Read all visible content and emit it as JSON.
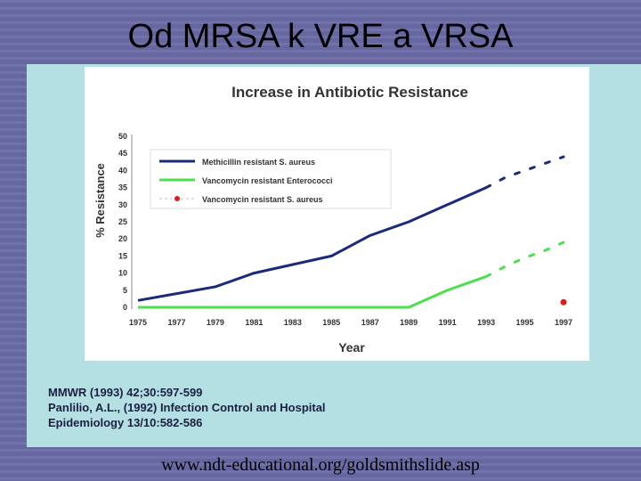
{
  "slide": {
    "title": "Od MRSA k VRE a VRSA",
    "url": "www.ndt-educational.org/goldsmithslide.asp"
  },
  "references": [
    "MMWR (1993) 42;30:597-599",
    "Panlilio, A.L., (1992) Infection Control and Hospital",
    "Epidemiology 13/10:582-586"
  ],
  "colors": {
    "mrsa": "#1c2a7a",
    "vre": "#4ce04c",
    "vrsa": "#d81e1e"
  },
  "chart_data": {
    "type": "line",
    "title": "Increase in Antibiotic Resistance",
    "xlabel": "Year",
    "ylabel": "% Resistance",
    "ylim": [
      0,
      50
    ],
    "yticks": [
      0,
      5,
      10,
      15,
      20,
      25,
      30,
      35,
      40,
      45,
      50
    ],
    "xticks": [
      "1975",
      "1977",
      "1979",
      "1981",
      "1983",
      "1985",
      "1987",
      "1989",
      "1991",
      "1993",
      "1995",
      "1997"
    ],
    "grid": false,
    "legend_position": "top-left",
    "series": [
      {
        "name": "Methicillin resistant S. aureus",
        "solid": {
          "x": [
            1975,
            1977,
            1979,
            1981,
            1983,
            1985,
            1987,
            1989,
            1991,
            1993
          ],
          "y": [
            2,
            4,
            6,
            10,
            12.5,
            15,
            21,
            25,
            30,
            35
          ]
        },
        "projected": {
          "x": [
            1994,
            1995,
            1996,
            1997
          ],
          "y": [
            38,
            40,
            42,
            44
          ]
        }
      },
      {
        "name": "Vancomycin resistant Enterococci",
        "solid": {
          "x": [
            1975,
            1989,
            1991,
            1993
          ],
          "y": [
            0,
            0,
            5,
            9
          ]
        },
        "projected": {
          "x": [
            1994,
            1995,
            1996,
            1997
          ],
          "y": [
            12,
            14.5,
            16.5,
            19
          ]
        }
      },
      {
        "name": "Vancomycin resistant S. aureus",
        "points": {
          "x": [
            1997
          ],
          "y": [
            1.5
          ]
        }
      }
    ]
  }
}
